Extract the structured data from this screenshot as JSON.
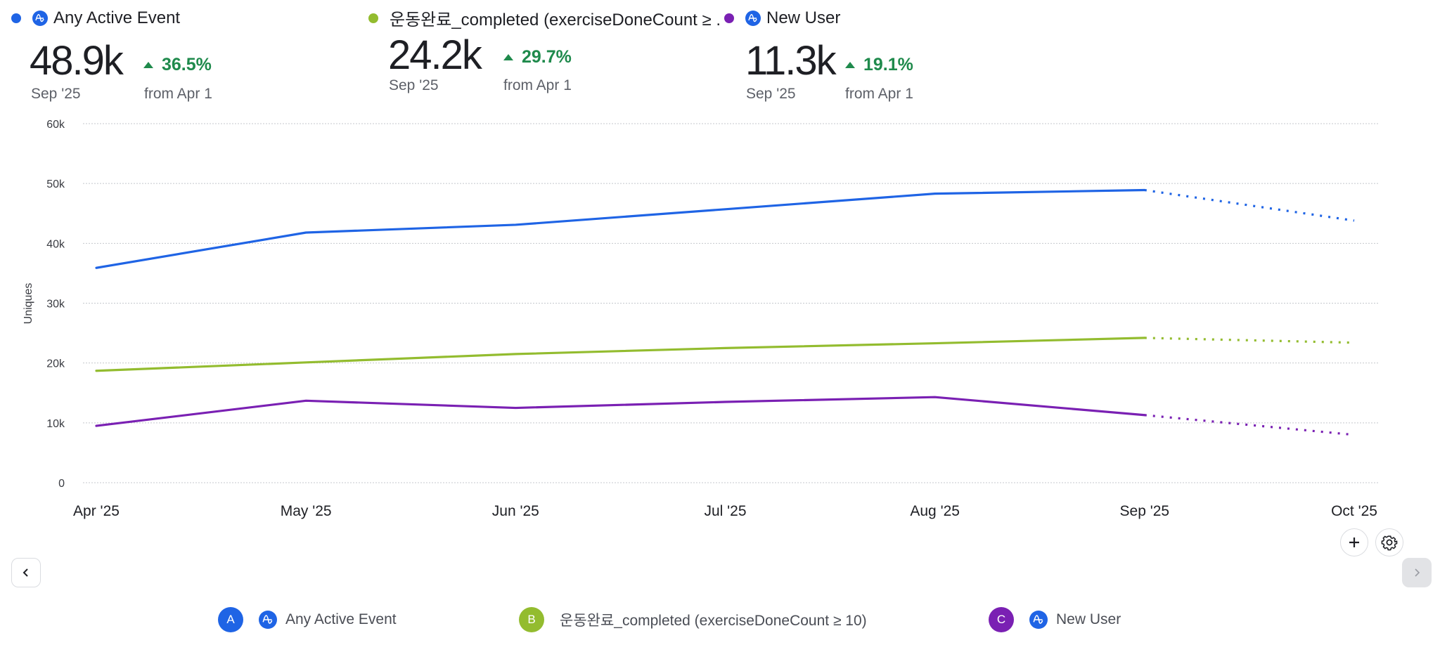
{
  "summary": [
    {
      "id": "A",
      "name": "Any Active Event",
      "color": "#1f64e5",
      "has_event_icon": true,
      "value": "48.9k",
      "period": "Sep '25",
      "delta": "36.5%",
      "delta_direction": "up",
      "delta_caption": "from Apr 1"
    },
    {
      "id": "B",
      "name": "운동완료_completed (exerciseDoneCount ≥ .",
      "color": "#93bc2f",
      "has_event_icon": false,
      "value": "24.2k",
      "period": "Sep '25",
      "delta": "29.7%",
      "delta_direction": "up",
      "delta_caption": "from Apr 1"
    },
    {
      "id": "C",
      "name": "New User",
      "color": "#7a20b3",
      "has_event_icon": true,
      "value": "11.3k",
      "period": "Sep '25",
      "delta": "19.1%",
      "delta_direction": "up",
      "delta_caption": "from Apr 1"
    }
  ],
  "controls": {
    "add_icon": "plus-icon",
    "settings_icon": "gear-icon",
    "prev_icon": "chevron-left-icon",
    "next_icon": "chevron-right-icon",
    "next_disabled": true
  },
  "legend": [
    {
      "badge": "A",
      "label": "Any Active Event",
      "color": "#1f64e5",
      "has_event_icon": true
    },
    {
      "badge": "B",
      "label": "운동완료_completed (exerciseDoneCount ≥ 10)",
      "color": "#93bc2f",
      "has_event_icon": false
    },
    {
      "badge": "C",
      "label": "New User",
      "color": "#7a20b3",
      "has_event_icon": true
    }
  ],
  "chart_data": {
    "type": "line",
    "title": "",
    "xlabel": "",
    "ylabel": "Uniques",
    "x": [
      "Apr '25",
      "May '25",
      "Jun '25",
      "Jul '25",
      "Aug '25",
      "Sep '25",
      "Oct '25"
    ],
    "y_ticks": [
      "0",
      "10k",
      "20k",
      "30k",
      "40k",
      "50k",
      "60k"
    ],
    "ylim": [
      0,
      60000
    ],
    "grid": true,
    "forecast_from_index": 5,
    "series": [
      {
        "name": "Any Active Event",
        "color": "#1f64e5",
        "values": [
          35900,
          41800,
          43100,
          45700,
          48300,
          48900,
          43800
        ]
      },
      {
        "name": "운동완료_completed (exerciseDoneCount ≥ 10)",
        "color": "#93bc2f",
        "values": [
          18700,
          20100,
          21500,
          22500,
          23300,
          24200,
          23400
        ]
      },
      {
        "name": "New User",
        "color": "#7a20b3",
        "values": [
          9500,
          13700,
          12500,
          13500,
          14300,
          11300,
          8000
        ]
      }
    ]
  }
}
